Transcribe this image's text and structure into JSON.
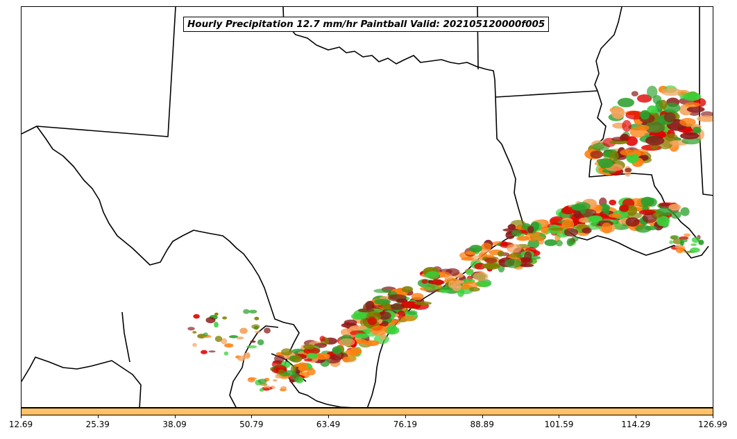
{
  "title": "Hourly Precipitation 12.7 mm/hr Paintball Valid: 202105120000f005",
  "map": {
    "type": "paintball precipitation map",
    "boundaries": "state borders and coastline",
    "member_colors": [
      "#e00000",
      "#ff7f0e",
      "#2ca02c",
      "#8b1a1a",
      "#808000",
      "#3ad13a",
      "#f4a460"
    ]
  },
  "colorbar": {
    "color": "#ffc266",
    "ticks": [
      "12.69",
      "25.39",
      "38.09",
      "50.79",
      "63.49",
      "76.19",
      "88.89",
      "101.59",
      "114.29",
      "126.99"
    ]
  }
}
